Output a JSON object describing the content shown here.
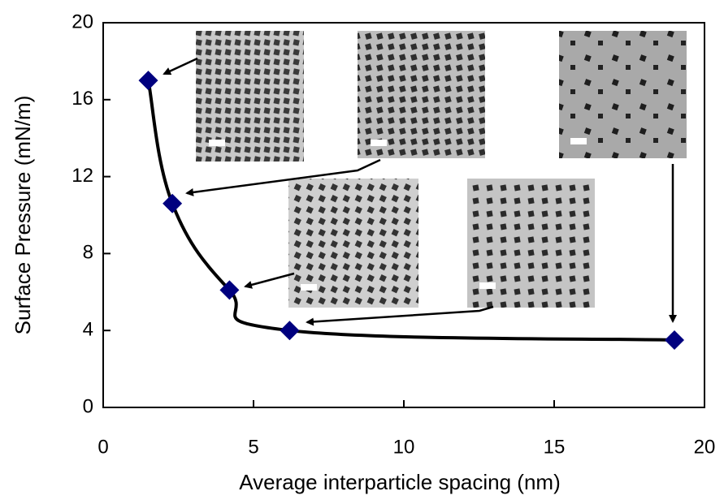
{
  "chart_data": {
    "type": "line",
    "xlabel": "Average interparticle spacing (nm)",
    "ylabel": "Surface Pressure (mN/m)",
    "x": [
      1.5,
      2.3,
      4.2,
      6.2,
      19
    ],
    "series": [
      {
        "values": [
          17,
          10.6,
          6.1,
          4.0,
          3.5
        ],
        "color": "#00007f",
        "line_color": "#000000"
      }
    ],
    "xlim": [
      0,
      20
    ],
    "xticks": [
      0,
      5,
      10,
      15,
      20
    ],
    "ylim": [
      0,
      20
    ],
    "yticks": [
      0,
      4,
      8,
      12,
      16,
      20
    ],
    "grid": false
  }
}
